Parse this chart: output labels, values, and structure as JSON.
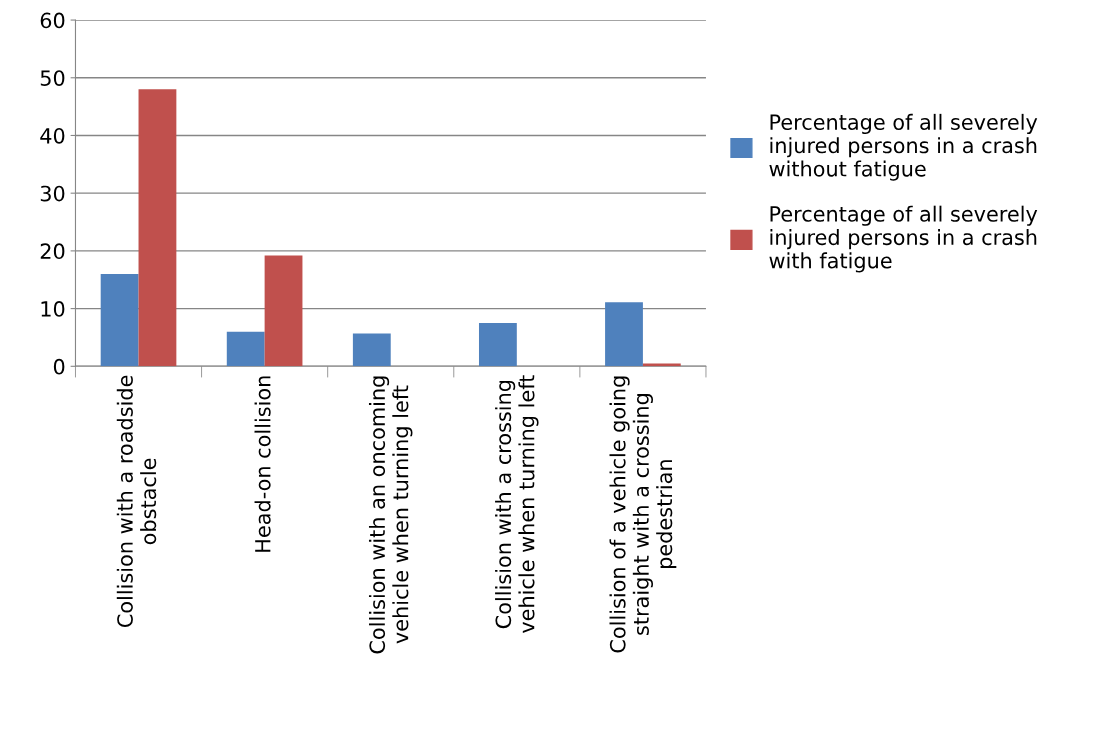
{
  "chart_data": {
    "type": "bar",
    "categories": [
      "Collision with a roadside\nobstacle",
      "Head-on collision",
      "Collision with an oncoming\nvehicle when turning left",
      "Collision with a crossing\nvehicle when turning left",
      "Collision of a vehicle going\nstraight with a crossing\npedestrian"
    ],
    "series": [
      {
        "name": "Percentage of all severely\ninjured persons in a crash\nwithout fatigue",
        "color": "#4f81bd",
        "values": [
          16,
          6,
          5.7,
          7.5,
          11.1
        ]
      },
      {
        "name": "Percentage of all severely\ninjured persons in a crash\nwith fatigue",
        "color": "#c0504d",
        "values": [
          48,
          19.2,
          0,
          0,
          0.5
        ]
      }
    ],
    "ylim": [
      0,
      60
    ],
    "yticks": [
      0,
      10,
      20,
      30,
      40,
      50,
      60
    ],
    "grid": "y",
    "legend": "right"
  }
}
